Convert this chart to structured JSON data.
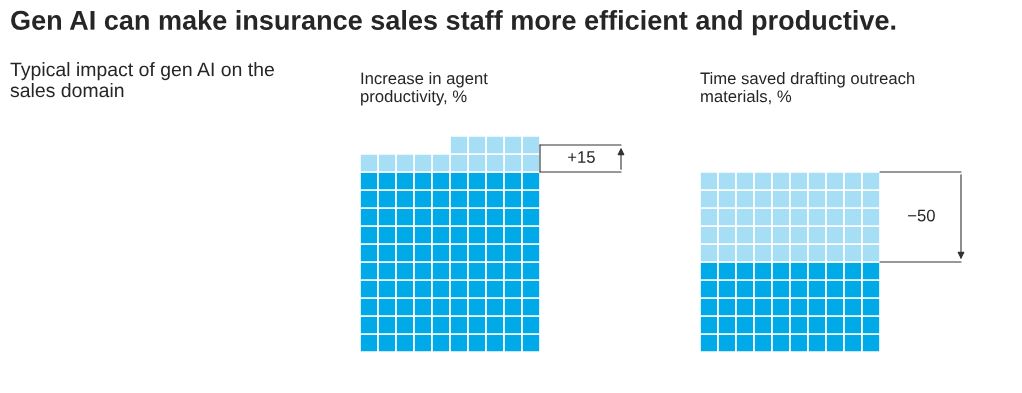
{
  "chart_data": [
    {
      "type": "other",
      "title": "Gen AI can make insurance sales staff more efficient and productive.",
      "subtitle": "Typical impact of gen AI on the sales domain"
    },
    {
      "type": "other",
      "title": "Increase in agent productivity, %",
      "values": [
        15
      ],
      "value_labels": [
        "+15"
      ],
      "color": "#a6dff5"
    },
    {
      "type": "other",
      "title": "Time saved drafting outreach materials, %",
      "values": [
        -50
      ],
      "value_labels": [
        "−50"
      ],
      "color": "#a6dff5"
    }
  ]
}
